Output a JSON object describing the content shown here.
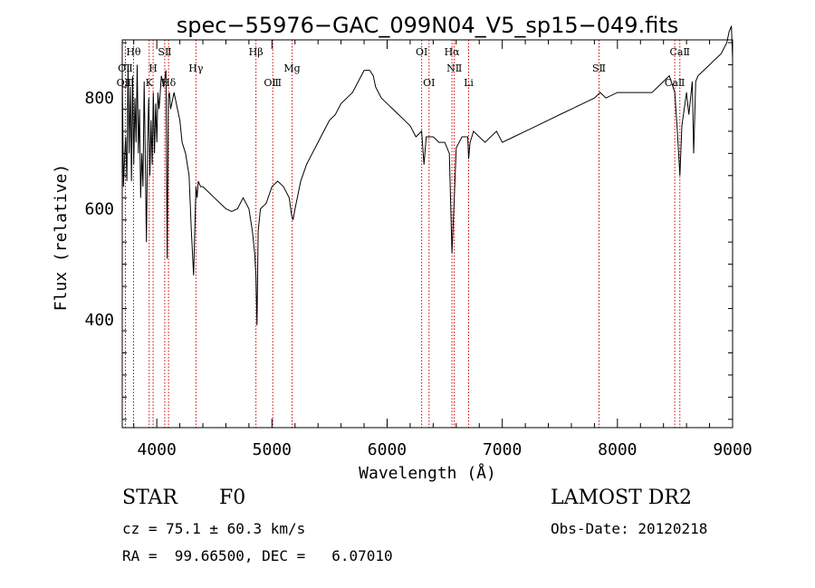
{
  "chart_data": {
    "type": "line",
    "title": "spec−55976−GAC_099N04_V5_sp15−049.fits",
    "xlabel": "Wavelength (Å)",
    "ylabel": "Flux (relative)",
    "xlim": [
      3700,
      9000
    ],
    "ylim": [
      205,
      905
    ],
    "xticks": [
      4000,
      5000,
      6000,
      7000,
      8000,
      9000
    ],
    "yticks": [
      400,
      600,
      800
    ],
    "series": [
      {
        "x": [
          3700,
          3710,
          3720,
          3730,
          3740,
          3750,
          3760,
          3770,
          3780,
          3790,
          3800,
          3810,
          3820,
          3830,
          3840,
          3850,
          3860,
          3870,
          3880,
          3890,
          3900,
          3910,
          3920,
          3930,
          3940,
          3950,
          3960,
          3970,
          3980,
          3990,
          4000,
          4010,
          4020,
          4040,
          4060,
          4080,
          4090,
          4100,
          4110,
          4120,
          4150,
          4180,
          4200,
          4220,
          4250,
          4280,
          4300,
          4320,
          4340,
          4350,
          4360,
          4380,
          4400,
          4450,
          4500,
          4550,
          4600,
          4650,
          4700,
          4750,
          4800,
          4830,
          4850,
          4861,
          4870,
          4880,
          4900,
          4950,
          5000,
          5050,
          5100,
          5150,
          5170,
          5183,
          5200,
          5250,
          5300,
          5350,
          5400,
          5450,
          5500,
          5550,
          5600,
          5650,
          5700,
          5750,
          5800,
          5850,
          5880,
          5900,
          5950,
          6000,
          6050,
          6100,
          6150,
          6200,
          6250,
          6300,
          6320,
          6340,
          6400,
          6450,
          6500,
          6540,
          6563,
          6580,
          6600,
          6650,
          6700,
          6708,
          6720,
          6750,
          6800,
          6850,
          6900,
          6950,
          7000,
          7100,
          7200,
          7300,
          7400,
          7500,
          7600,
          7700,
          7800,
          7850,
          7900,
          8000,
          8100,
          8200,
          8300,
          8400,
          8450,
          8498,
          8520,
          8542,
          8560,
          8600,
          8620,
          8650,
          8662,
          8680,
          8700,
          8750,
          8800,
          8850,
          8900,
          8950,
          8970,
          8990,
          9000
        ],
        "values": [
          850,
          640,
          690,
          730,
          650,
          860,
          700,
          820,
          650,
          840,
          680,
          800,
          720,
          860,
          700,
          780,
          620,
          700,
          640,
          830,
          700,
          540,
          720,
          800,
          660,
          760,
          680,
          810,
          700,
          790,
          720,
          810,
          780,
          840,
          820,
          850,
          510,
          800,
          810,
          780,
          810,
          780,
          760,
          720,
          700,
          660,
          560,
          480,
          640,
          620,
          650,
          640,
          640,
          630,
          620,
          610,
          600,
          595,
          600,
          620,
          600,
          560,
          520,
          480,
          390,
          560,
          600,
          610,
          640,
          650,
          640,
          620,
          590,
          580,
          600,
          650,
          680,
          700,
          720,
          740,
          760,
          770,
          790,
          800,
          810,
          830,
          850,
          850,
          840,
          820,
          800,
          790,
          780,
          770,
          760,
          750,
          730,
          740,
          680,
          730,
          730,
          720,
          720,
          700,
          520,
          600,
          710,
          730,
          730,
          690,
          720,
          740,
          730,
          720,
          730,
          740,
          720,
          730,
          740,
          750,
          760,
          770,
          780,
          790,
          800,
          810,
          800,
          810,
          810,
          810,
          810,
          830,
          840,
          810,
          740,
          660,
          750,
          810,
          770,
          830,
          700,
          830,
          840,
          850,
          860,
          870,
          880,
          900,
          920,
          930,
          870
        ]
      }
    ],
    "lines": [
      {
        "label": "OⅡ",
        "x": 3727,
        "row": 2
      },
      {
        "label": "OⅢ",
        "x": 3727,
        "row": 3
      },
      {
        "label": "Hθ",
        "x": 3798,
        "row": 1
      },
      {
        "label": "H",
        "x": 3968,
        "row": 2
      },
      {
        "label": "K",
        "x": 3934,
        "row": 3
      },
      {
        "label": "SⅡ",
        "x": 4069,
        "row": 1
      },
      {
        "label": "Hδ",
        "x": 4102,
        "row": 3
      },
      {
        "label": "Hγ",
        "x": 4340,
        "row": 2
      },
      {
        "label": "Hβ",
        "x": 4861,
        "row": 1
      },
      {
        "label": "OⅢ",
        "x": 5007,
        "row": 3
      },
      {
        "label": "Mg",
        "x": 5175,
        "row": 2
      },
      {
        "label": "OⅠ",
        "x": 6300,
        "row": 1
      },
      {
        "label": "OⅠ",
        "x": 6364,
        "row": 3
      },
      {
        "label": "Hα",
        "x": 6563,
        "row": 1
      },
      {
        "label": "NⅡ",
        "x": 6583,
        "row": 2
      },
      {
        "label": "Li",
        "x": 6708,
        "row": 3
      },
      {
        "label": "SⅡ",
        "x": 7840,
        "row": 2
      },
      {
        "label": "CaⅡ",
        "x": 8542,
        "row": 1
      },
      {
        "label": "CaⅡ",
        "x": 8498,
        "row": 3
      }
    ]
  },
  "info": {
    "class_label": "STAR",
    "subclass": "F0",
    "survey": "LAMOST DR2",
    "cz": "cz = 75.1 ± 60.3 km/s",
    "obs_date": "Obs-Date: 20120218",
    "coords": "RA =  99.66500, DEC =   6.07010"
  },
  "colors": {
    "line_marker": "#cc0000",
    "spectrum": "#000000"
  }
}
